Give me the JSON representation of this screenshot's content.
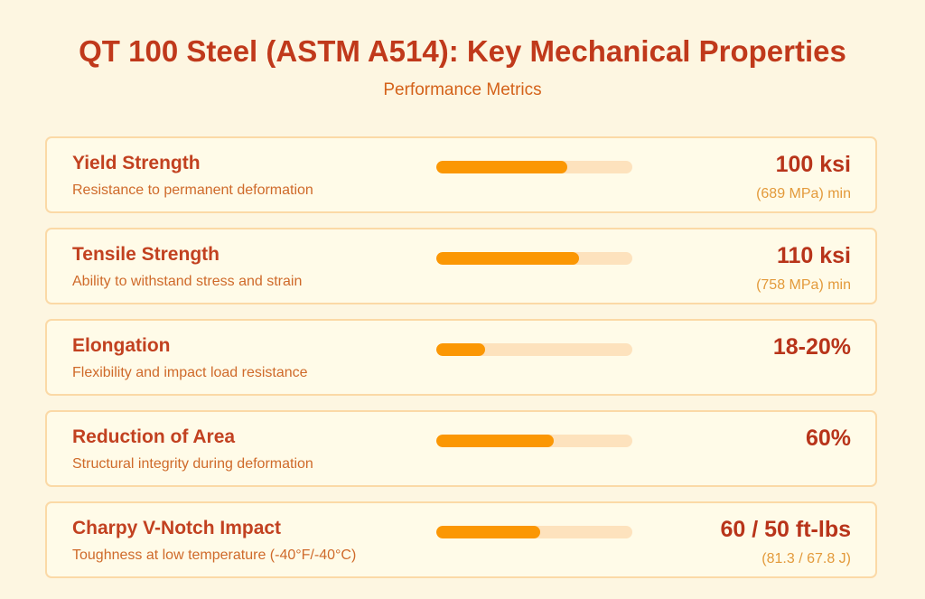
{
  "header": {
    "title": "QT 100 Steel (ASTM A514): Key Mechanical Properties",
    "subtitle": "Performance Metrics"
  },
  "colors": {
    "background": "#fdf6e1",
    "card_background": "#fffbe8",
    "card_border": "#fbd9a6",
    "title": "#c0391b",
    "bar_fill": "#fb9704",
    "bar_track": "#fde2bd",
    "value": "#b8341a",
    "secondary_value": "#e39a3b"
  },
  "metrics": [
    {
      "name": "Yield Strength",
      "description": "Resistance to permanent deformation",
      "value": "100 ksi",
      "secondary": "(689 MPa) min",
      "bar_percent": 67
    },
    {
      "name": "Tensile Strength",
      "description": "Ability to withstand stress and strain",
      "value": "110 ksi",
      "secondary": "(758 MPa) min",
      "bar_percent": 73
    },
    {
      "name": "Elongation",
      "description": "Flexibility and impact load resistance",
      "value": "18-20%",
      "secondary": "",
      "bar_percent": 25
    },
    {
      "name": "Reduction of Area",
      "description": "Structural integrity during deformation",
      "value": "60%",
      "secondary": "",
      "bar_percent": 60
    },
    {
      "name": "Charpy V-Notch Impact",
      "description": "Toughness at low temperature (-40°F/-40°C)",
      "value": "60 / 50 ft-lbs",
      "secondary": "(81.3 / 67.8 J)",
      "bar_percent": 53
    }
  ],
  "chart_data": {
    "type": "bar",
    "orientation": "horizontal",
    "title": "QT 100 Steel (ASTM A514): Key Mechanical Properties",
    "subtitle": "Performance Metrics",
    "categories": [
      "Yield Strength",
      "Tensile Strength",
      "Elongation",
      "Reduction of Area",
      "Charpy V-Notch Impact"
    ],
    "values": [
      67,
      73,
      25,
      60,
      53
    ],
    "value_labels": [
      "100 ksi",
      "110 ksi",
      "18-20%",
      "60%",
      "60 / 50 ft-lbs"
    ],
    "secondary_labels": [
      "(689 MPa) min",
      "(758 MPa) min",
      "",
      "",
      "(81.3 / 67.8 J)"
    ],
    "descriptions": [
      "Resistance to permanent deformation",
      "Ability to withstand stress and strain",
      "Flexibility and impact load resistance",
      "Structural integrity during deformation",
      "Toughness at low temperature (-40°F/-40°C)"
    ],
    "xlabel": "",
    "ylabel": "",
    "xlim": [
      0,
      100
    ],
    "grid": false,
    "legend": "none"
  }
}
